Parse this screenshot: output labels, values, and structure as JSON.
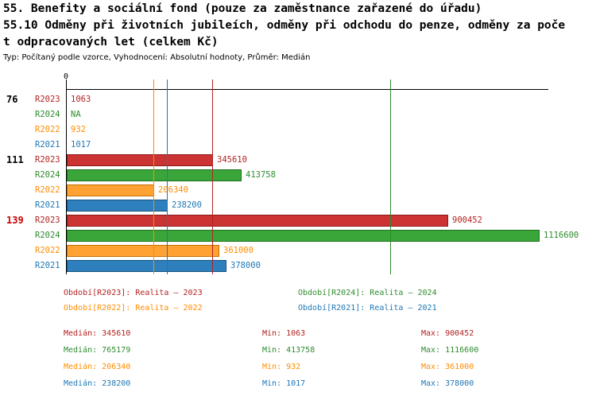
{
  "header": {
    "title_line1": "55. Benefity a sociální fond (pouze za zaměstnance zařazené do úřadu)",
    "title_line2": "55.10 Odměny při životních jubileích, odměny při odchodu do penze, odměny za poče",
    "title_line3": "t odpracovaných let (celkem Kč)",
    "subtitle": "Typ: Počítaný podle vzorce, Vyhodnocení: Absolutní hodnoty, Průměr: Medián"
  },
  "chart_data": {
    "type": "bar",
    "orientation": "horizontal",
    "unit": "Kč",
    "x_axis": {
      "origin_label": "0",
      "min": 0,
      "max": 1116600
    },
    "series_colors": {
      "R2023": {
        "text": "#b22222",
        "fill": "#cc3333",
        "border": "#8b1717"
      },
      "R2024": {
        "text": "#2e8b2e",
        "fill": "#3aa63a",
        "border": "#1d701d"
      },
      "R2022": {
        "text": "#ff8c00",
        "fill": "#ffa133",
        "border": "#c76f00"
      },
      "R2021": {
        "text": "#1f77b4",
        "fill": "#2e7fbe",
        "border": "#155380"
      }
    },
    "groups": [
      {
        "label": "76",
        "label_color": "#000000",
        "bars": [
          {
            "series": "R2023",
            "value": 1063,
            "display": "1063"
          },
          {
            "series": "R2024",
            "value": null,
            "display": "NA"
          },
          {
            "series": "R2022",
            "value": 932,
            "display": "932"
          },
          {
            "series": "R2021",
            "value": 1017,
            "display": "1017"
          }
        ]
      },
      {
        "label": "111",
        "label_color": "#000000",
        "bars": [
          {
            "series": "R2023",
            "value": 345610,
            "display": "345610"
          },
          {
            "series": "R2024",
            "value": 413758,
            "display": "413758"
          },
          {
            "series": "R2022",
            "value": 206340,
            "display": "206340"
          },
          {
            "series": "R2021",
            "value": 238200,
            "display": "238200"
          }
        ]
      },
      {
        "label": "139",
        "label_color": "#cc0000",
        "bars": [
          {
            "series": "R2023",
            "value": 900452,
            "display": "900452"
          },
          {
            "series": "R2024",
            "value": 1116600,
            "display": "1116600"
          },
          {
            "series": "R2022",
            "value": 361000,
            "display": "361000"
          },
          {
            "series": "R2021",
            "value": 378000,
            "display": "378000"
          }
        ]
      }
    ],
    "median_lines": [
      {
        "series": "R2023",
        "value": 345610,
        "color": "#b22222"
      },
      {
        "series": "R2024",
        "value": 765179,
        "color": "#2e8b2e"
      },
      {
        "series": "R2022",
        "value": 206340,
        "color": "#ff8c00"
      },
      {
        "series": "R2021",
        "value": 238200,
        "color": "#1f77b4"
      }
    ]
  },
  "legend": {
    "items": [
      {
        "id": "R2023",
        "label": "Období[R2023]: Realita – 2023",
        "color": "#b22222"
      },
      {
        "id": "R2024",
        "label": "Období[R2024]: Realita – 2024",
        "color": "#2e8b2e"
      },
      {
        "id": "R2022",
        "label": "Období[R2022]: Realita – 2022",
        "color": "#ff8c00"
      },
      {
        "id": "R2021",
        "label": "Období[R2021]: Realita – 2021",
        "color": "#1f77b4"
      }
    ]
  },
  "stats": {
    "rows": [
      {
        "series": "R2023",
        "color": "#b22222",
        "median": "Medián: 345610",
        "min": "Min: 1063",
        "max": "Max: 900452"
      },
      {
        "series": "R2024",
        "color": "#2e8b2e",
        "median": "Medián: 765179",
        "min": "Min: 413758",
        "max": "Max: 1116600"
      },
      {
        "series": "R2022",
        "color": "#ff8c00",
        "median": "Medián: 206340",
        "min": "Min: 932",
        "max": "Max: 361000"
      },
      {
        "series": "R2021",
        "color": "#1f77b4",
        "median": "Medián: 238200",
        "min": "Min: 1017",
        "max": "Max: 378000"
      }
    ]
  }
}
